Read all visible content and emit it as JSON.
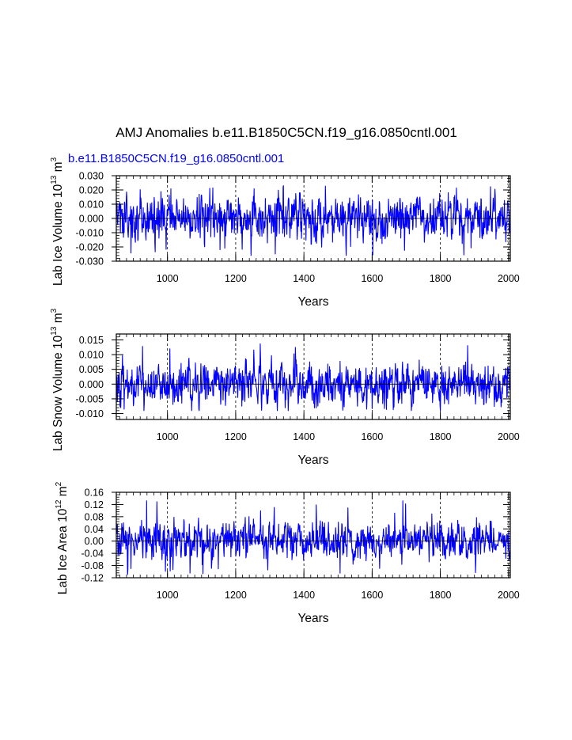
{
  "figure": {
    "title": "AMJ Anomalies b.e11.B1850C5CN.f19_g16.0850cntl.001",
    "subtitle": "b.e11.B1850C5CN.f19_g16.0850cntl.001",
    "subtitle_color": "#0000ff",
    "series_color": "#0000ff"
  },
  "chart_data": [
    {
      "type": "line",
      "title": "",
      "xlabel": "Years",
      "ylabel": "Lab Ice Volume 10",
      "ylabel_exp": "13",
      "ylabel_unit": " m",
      "ylabel_unit_exp": "3",
      "xlim": [
        850,
        2005
      ],
      "ylim": [
        -0.03,
        0.03
      ],
      "xticks": [
        1000,
        1200,
        1400,
        1600,
        1800,
        2000
      ],
      "xtick_labels": [
        "1000",
        "1200",
        "1400",
        "1600",
        "1800",
        "2000"
      ],
      "yticks": [
        -0.03,
        -0.02,
        -0.01,
        0.0,
        0.01,
        0.02,
        0.03
      ],
      "ytick_labels": [
        "-0.030",
        "-0.020",
        "-0.010",
        "0.000",
        "0.010",
        "0.020",
        "0.030"
      ],
      "grid": "dashed vertical at x ticks",
      "series": [
        {
          "name": "b.e11.B1850C5CN.f19_g16.0850cntl.001",
          "x_start": 850,
          "x_end": 2005,
          "amplitude": 0.0075,
          "peak_max": 0.025,
          "peak_min": -0.026
        }
      ]
    },
    {
      "type": "line",
      "title": "",
      "xlabel": "Years",
      "ylabel": "Lab Snow Volume 10",
      "ylabel_exp": "13",
      "ylabel_unit": " m",
      "ylabel_unit_exp": "3",
      "xlim": [
        850,
        2005
      ],
      "ylim": [
        -0.012,
        0.017
      ],
      "xticks": [
        1000,
        1200,
        1400,
        1600,
        1800,
        2000
      ],
      "xtick_labels": [
        "1000",
        "1200",
        "1400",
        "1600",
        "1800",
        "2000"
      ],
      "yticks": [
        -0.01,
        -0.005,
        0.0,
        0.005,
        0.01,
        0.015
      ],
      "ytick_labels": [
        "-0.010",
        "-0.005",
        "0.000",
        "0.005",
        "0.010",
        "0.015"
      ],
      "grid": "dashed vertical at x ticks",
      "series": [
        {
          "name": "b.e11.B1850C5CN.f19_g16.0850cntl.001",
          "x_start": 850,
          "x_end": 2005,
          "amplitude": 0.0033,
          "peak_max": 0.014,
          "peak_min": -0.009
        }
      ]
    },
    {
      "type": "line",
      "title": "",
      "xlabel": "Years",
      "ylabel": "Lab Ice Area 10",
      "ylabel_exp": "12",
      "ylabel_unit": " m",
      "ylabel_unit_exp": "2",
      "xlim": [
        850,
        2005
      ],
      "ylim": [
        -0.12,
        0.16
      ],
      "xticks": [
        1000,
        1200,
        1400,
        1600,
        1800,
        2000
      ],
      "xtick_labels": [
        "1000",
        "1200",
        "1400",
        "1600",
        "1800",
        "2000"
      ],
      "yticks": [
        -0.12,
        -0.08,
        -0.04,
        0.0,
        0.04,
        0.08,
        0.12,
        0.16
      ],
      "ytick_labels": [
        "-0.12",
        "-0.08",
        "-0.04",
        "0.00",
        "0.04",
        "0.08",
        "0.12",
        "0.16"
      ],
      "grid": "dashed vertical at x ticks",
      "series": [
        {
          "name": "b.e11.B1850C5CN.f19_g16.0850cntl.001",
          "x_start": 850,
          "x_end": 2005,
          "amplitude": 0.028,
          "peak_max": 0.135,
          "peak_min": -0.11
        }
      ]
    }
  ]
}
